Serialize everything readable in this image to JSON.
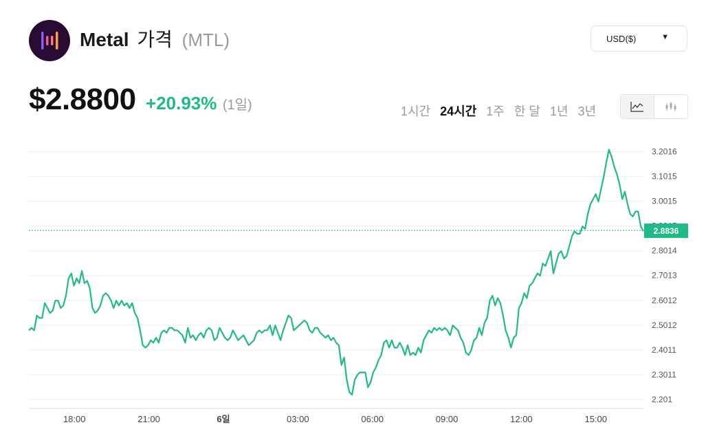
{
  "header": {
    "name": "Metal",
    "name_kr": "가격",
    "symbol": "(MTL)",
    "logo_icon": "metal-logo-icon"
  },
  "currency": {
    "selected": "USD($)",
    "caret": "▼"
  },
  "price": {
    "value": "$2.8800",
    "change": "+20.93%",
    "period": "(1일)"
  },
  "ranges": [
    "1시간",
    "24시간",
    "1주",
    "한 달",
    "1년",
    "3년"
  ],
  "range_active": "24시간",
  "chart_toggle": {
    "line_icon": "line-chart-icon",
    "candle_icon": "candlestick-icon",
    "active": "line"
  },
  "colors": {
    "line": "#1fb98a",
    "positive": "#1fb98a",
    "grid": "#eeeeee",
    "current_label_bg": "#1fb98a"
  },
  "chart_data": {
    "type": "line",
    "x_ticks": [
      "18:00",
      "21:00",
      "6일",
      "03:00",
      "06:00",
      "09:00",
      "12:00",
      "15:00"
    ],
    "y_ticks": [
      3.2016,
      3.1015,
      3.0015,
      2.9015,
      2.8014,
      2.7013,
      2.6012,
      2.5012,
      2.4011,
      2.3011,
      2.201
    ],
    "ylim": [
      2.17,
      3.245
    ],
    "current_value_label": "2.8836",
    "current_value": 2.8836,
    "x_start": "16:10",
    "x_end": "16:55",
    "grid": true,
    "values": [
      2.48,
      2.49,
      2.48,
      2.54,
      2.53,
      2.53,
      2.59,
      2.57,
      2.55,
      2.56,
      2.6,
      2.6,
      2.57,
      2.58,
      2.62,
      2.69,
      2.71,
      2.66,
      2.69,
      2.67,
      2.72,
      2.67,
      2.68,
      2.65,
      2.57,
      2.55,
      2.56,
      2.58,
      2.62,
      2.63,
      2.62,
      2.6,
      2.57,
      2.6,
      2.58,
      2.6,
      2.58,
      2.59,
      2.57,
      2.59,
      2.55,
      2.53,
      2.48,
      2.42,
      2.41,
      2.42,
      2.44,
      2.43,
      2.45,
      2.43,
      2.47,
      2.48,
      2.47,
      2.49,
      2.49,
      2.48,
      2.48,
      2.47,
      2.46,
      2.43,
      2.49,
      2.45,
      2.46,
      2.44,
      2.46,
      2.47,
      2.45,
      2.48,
      2.49,
      2.48,
      2.44,
      2.45,
      2.49,
      2.47,
      2.45,
      2.44,
      2.45,
      2.48,
      2.46,
      2.44,
      2.45,
      2.46,
      2.44,
      2.42,
      2.43,
      2.44,
      2.47,
      2.48,
      2.47,
      2.48,
      2.48,
      2.5,
      2.46,
      2.5,
      2.47,
      2.44,
      2.48,
      2.51,
      2.54,
      2.53,
      2.48,
      2.49,
      2.5,
      2.51,
      2.52,
      2.51,
      2.48,
      2.47,
      2.49,
      2.49,
      2.47,
      2.46,
      2.45,
      2.46,
      2.44,
      2.45,
      2.43,
      2.42,
      2.34,
      2.37,
      2.28,
      2.23,
      2.22,
      2.28,
      2.3,
      2.31,
      2.31,
      2.31,
      2.25,
      2.27,
      2.31,
      2.33,
      2.36,
      2.38,
      2.43,
      2.44,
      2.41,
      2.44,
      2.41,
      2.41,
      2.43,
      2.41,
      2.38,
      2.42,
      2.38,
      2.39,
      2.38,
      2.41,
      2.39,
      2.44,
      2.46,
      2.48,
      2.47,
      2.49,
      2.48,
      2.49,
      2.48,
      2.49,
      2.48,
      2.46,
      2.5,
      2.49,
      2.48,
      2.45,
      2.43,
      2.39,
      2.38,
      2.4,
      2.44,
      2.45,
      2.49,
      2.46,
      2.51,
      2.53,
      2.6,
      2.62,
      2.58,
      2.61,
      2.59,
      2.54,
      2.48,
      2.45,
      2.41,
      2.45,
      2.46,
      2.57,
      2.59,
      2.63,
      2.61,
      2.66,
      2.67,
      2.69,
      2.71,
      2.7,
      2.75,
      2.74,
      2.77,
      2.8,
      2.71,
      2.75,
      2.79,
      2.8,
      2.77,
      2.78,
      2.82,
      2.86,
      2.88,
      2.87,
      2.87,
      2.9,
      2.89,
      2.95,
      2.99,
      3.01,
      3.03,
      3.0,
      3.05,
      3.1,
      3.16,
      3.21,
      3.18,
      3.14,
      3.11,
      3.07,
      3.01,
      3.04,
      2.99,
      2.95,
      2.94,
      2.96,
      2.96,
      2.9,
      2.88
    ]
  }
}
